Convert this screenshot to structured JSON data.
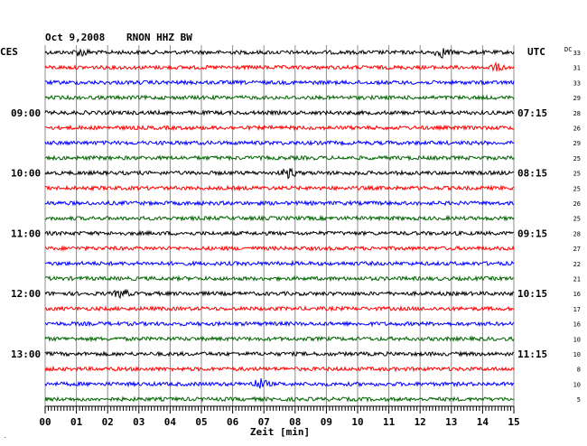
{
  "header": {
    "date": "Oct 9,2008",
    "station": "RNON HHZ BW",
    "left_timezone": "CES",
    "right_timezone": "UTC",
    "dc_label": "DC"
  },
  "chart_data": {
    "type": "line",
    "title": "Oct 9,2008   RNON HHZ BW",
    "xlabel": "Zeit [min]",
    "xlim": [
      0,
      15
    ],
    "x_ticks": [
      "00",
      "01",
      "02",
      "03",
      "04",
      "05",
      "06",
      "07",
      "08",
      "09",
      "10",
      "11",
      "12",
      "13",
      "14",
      "15"
    ],
    "grid": true,
    "trace_colors": [
      "#000000",
      "#ff0000",
      "#0000ff",
      "#006400"
    ],
    "left_hour_labels": [
      {
        "row": 4,
        "text": "09:00"
      },
      {
        "row": 8,
        "text": "10:00"
      },
      {
        "row": 12,
        "text": "11:00"
      },
      {
        "row": 16,
        "text": "12:00"
      },
      {
        "row": 20,
        "text": "13:00"
      }
    ],
    "right_hour_labels": [
      {
        "row": 4,
        "text": "07:15"
      },
      {
        "row": 8,
        "text": "08:15"
      },
      {
        "row": 12,
        "text": "09:15"
      },
      {
        "row": 16,
        "text": "10:15"
      },
      {
        "row": 20,
        "text": "11:15"
      }
    ],
    "dc_offsets": [
      "33",
      "31",
      "33",
      "29",
      "28",
      "26",
      "29",
      "25",
      "25",
      "25",
      "26",
      "25",
      "28",
      "27",
      "22",
      "21",
      "16",
      "17",
      "16",
      "10",
      "10",
      "8",
      "10",
      "5"
    ],
    "traces": 24
  }
}
